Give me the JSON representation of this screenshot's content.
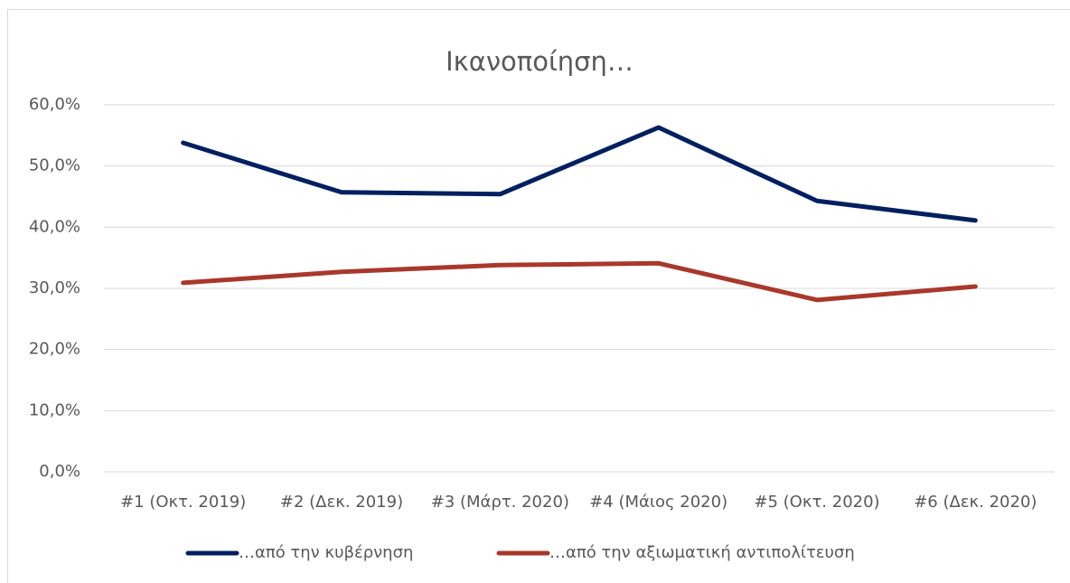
{
  "chart_data": {
    "type": "line",
    "title": "Ικανοποίηση…",
    "categories": [
      "#1 (Οκτ. 2019)",
      "#2 (Δεκ. 2019)",
      "#3 (Μάρτ. 2020)",
      "#4 (Μάιος 2020)",
      "#5 (Οκτ. 2020)",
      "#6 (Δεκ. 2020)"
    ],
    "series": [
      {
        "name": "…από την κυβέρνηση",
        "color": "#002060",
        "values": [
          53.8,
          45.7,
          45.4,
          56.3,
          44.3,
          41.1
        ]
      },
      {
        "name": "…από την αξιωματική αντιπολίτευση",
        "color": "#a9382b",
        "values": [
          30.9,
          32.7,
          33.8,
          34.1,
          28.1,
          30.3
        ]
      }
    ],
    "ylim": [
      0,
      60
    ],
    "yticks": [
      {
        "value": 0,
        "label": "0,0%"
      },
      {
        "value": 10,
        "label": "10,0%"
      },
      {
        "value": 20,
        "label": "20,0%"
      },
      {
        "value": 30,
        "label": "30,0%"
      },
      {
        "value": 40,
        "label": "40,0%"
      },
      {
        "value": 50,
        "label": "50,0%"
      },
      {
        "value": 60,
        "label": "60,0%"
      }
    ],
    "grid": true,
    "legend": "bottom"
  }
}
